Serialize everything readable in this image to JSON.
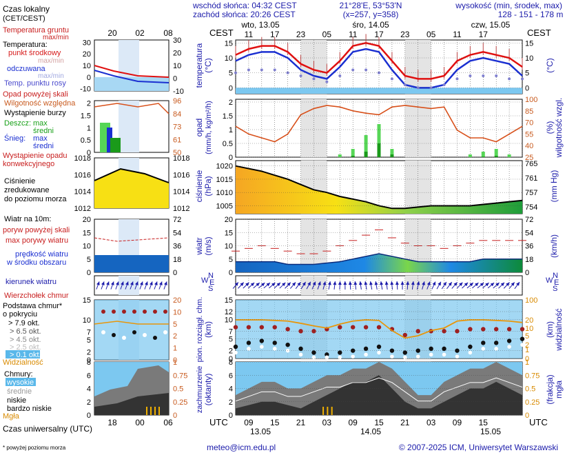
{
  "header": {
    "sunrise": "wschód słońca: 04:32 CEST",
    "sunset": "zachód słońca: 20:26 CEST",
    "coords": "21°28'E, 53°53'N",
    "grid": "(x=257, y=358)",
    "altitude_label": "wysokość (min, środek, max)",
    "altitude_values": "128 - 151 - 178 m"
  },
  "legend": {
    "local_time": "Czas lokalny",
    "local_time_zone": "(CET/CEST)",
    "soil_temp": "Temperatura gruntu",
    "soil_temp_sub": "max/min",
    "temperature": "Temperatura:",
    "temp_mid": "punkt środkowy",
    "temp_maxmin": "max/min",
    "temp_felt": "odczuwana",
    "temp_felt_sub": "max/min",
    "dew_point": "Temp. punktu rosy",
    "precip_over": "Opad powyżej skali",
    "humidity": "Wilgotność względna",
    "storm": "Wystąpienie burzy",
    "rain": "Deszcz:",
    "rain_max": "max",
    "rain_mid": "średni",
    "snow": "Śnieg:",
    "snow_max": "max",
    "snow_mid": "średni",
    "convective": "Wystąpienie opadu",
    "convective2": "konwekcyjnego",
    "pressure1": "Ciśnienie",
    "pressure2": "zredukowane",
    "pressure3": "do poziomu morza",
    "wind_title": "Wiatr na 10m:",
    "gust_over": "poryw powyżej skali",
    "gust_max": "max porywy wiatru",
    "wind_speed": "prędkość wiatru",
    "wind_speed2": "w środku obszaru",
    "wind_dir": "kierunek wiatru",
    "cloud_top": "Wierzchołek chmur",
    "cloud_base": "Podstawa chmur*",
    "cloud_base2": "o pokryciu",
    "okt79": "> 7.9 okt.",
    "okt65": "> 6.5 okt.",
    "okt45": "> 4.5 okt.",
    "okt25": "> 2.5 okt.",
    "okt01": "> 0.1 okt.",
    "visibility": "Widzialność",
    "clouds": "Chmury:",
    "high": "wysokie",
    "mid": "średnie",
    "low": "niskie",
    "very_low": "bardzo niskie",
    "fog": "Mgła",
    "utc": "Czas uniwersalny (UTC)",
    "footnote": "* powyżej poziomu morza",
    "leg_top_hours": [
      "20",
      "02",
      "08"
    ],
    "leg_bot_hours": [
      "18",
      "00",
      "06"
    ]
  },
  "main": {
    "cest": "CEST",
    "utc": "UTC",
    "days": [
      "wto, 13.05",
      "śro, 14.05",
      "czw, 15.05"
    ],
    "bottom_days": [
      "13.05",
      "14.05",
      "15.05"
    ],
    "top_hours": [
      "11",
      "17",
      "23",
      "05",
      "11",
      "17",
      "23",
      "05",
      "11",
      "17"
    ],
    "bottom_hours": [
      "09",
      "15",
      "21",
      "03",
      "09",
      "15",
      "21",
      "03",
      "09",
      "15"
    ],
    "labels": {
      "temp_left": "temperatura",
      "temp_left_unit": "(°C)",
      "temp_right_unit": "(°C)",
      "precip_left": "opad",
      "precip_left_unit": "(mm/h, kg/m²/h)",
      "precip_right": "wilgotność wzgl.",
      "precip_right_unit": "(%)",
      "press_left": "ciśnienie",
      "press_left_unit": "(hPa)",
      "press_right_unit": "(mm Hg)",
      "wind_left": "wiatr",
      "wind_left_unit": "(m/s)",
      "wind_right_unit": "(km/h)",
      "cloud_left": "pion. rozciągł. chm.",
      "cloud_left_unit": "(km)",
      "cloud_right": "widzialność",
      "cloud_right_unit": "(km)",
      "cov_left": "zachmurzenie",
      "cov_left_unit": "(oktanty)",
      "cov_right": "mgła",
      "cov_right_unit": "(frakcja)"
    }
  },
  "footer": {
    "email": "meteo@icm.edu.pl",
    "copyright": "© 2007-2025 ICM, Uniwersytet Warszawski"
  },
  "chart_data": [
    {
      "type": "line",
      "panel": "temperature",
      "x_hours_utc": [
        6,
        9,
        12,
        15,
        18,
        21,
        24,
        27,
        30,
        33,
        36,
        39,
        42,
        45,
        48,
        51,
        54,
        57,
        60,
        63,
        66,
        69,
        72
      ],
      "series": [
        {
          "values": [
            11,
            13,
            14,
            14,
            12,
            8,
            6,
            5,
            9,
            14,
            15,
            14,
            9,
            4,
            3,
            3,
            4,
            9,
            11,
            12,
            11,
            10,
            7
          ]
        },
        {
          "values": [
            9,
            11,
            12,
            12,
            10,
            6,
            4,
            3,
            7,
            12,
            13,
            12,
            6,
            1,
            0,
            0,
            1,
            6,
            9,
            10,
            9,
            8,
            4
          ]
        },
        {
          "values": [
            5,
            6,
            6,
            6,
            5,
            4,
            3,
            2,
            4,
            6,
            6,
            5,
            3,
            1,
            0,
            0,
            1,
            3,
            4,
            4,
            4,
            3,
            3
          ]
        }
      ],
      "left_axis": {
        "ticks": [
          0,
          5,
          10,
          15
        ]
      },
      "right_axis": {
        "ticks": [
          0,
          5,
          10,
          15
        ]
      }
    },
    {
      "type": "bar",
      "panel": "precipitation_humidity",
      "x_hours_utc": [
        6,
        9,
        12,
        15,
        18,
        21,
        24,
        27,
        30,
        33,
        36,
        39,
        42,
        45,
        48,
        51,
        54,
        57,
        60,
        63,
        66,
        69,
        72
      ],
      "humidity": [
        65,
        55,
        50,
        45,
        55,
        80,
        88,
        92,
        90,
        85,
        82,
        80,
        90,
        92,
        90,
        88,
        90,
        60,
        50,
        50,
        45,
        55,
        65
      ],
      "rain_mid": [
        0,
        0,
        0,
        0,
        0,
        0,
        0,
        0,
        0,
        0.05,
        0.2,
        0.5,
        0.1,
        0,
        0,
        0,
        0,
        0,
        0,
        0.02,
        0.05,
        0,
        0
      ],
      "rain_max": [
        0,
        0,
        0,
        0,
        0,
        0,
        0,
        0,
        0.1,
        0.3,
        0.8,
        1.2,
        0.3,
        0,
        0,
        0,
        0,
        0,
        0.1,
        0.2,
        0.3,
        0.1,
        0
      ],
      "left_axis": {
        "ticks": [
          0,
          0.5,
          1,
          1.5,
          2
        ]
      },
      "right_axis": {
        "ticks": [
          25,
          40,
          55,
          70,
          85,
          100
        ]
      }
    },
    {
      "type": "area",
      "panel": "pressure",
      "x_hours_utc": [
        6,
        9,
        12,
        15,
        18,
        21,
        24,
        27,
        30,
        33,
        36,
        39,
        42,
        45,
        48,
        51,
        54,
        57,
        60,
        63,
        66,
        69,
        72
      ],
      "values": [
        1020,
        1019,
        1018,
        1016.5,
        1015,
        1013,
        1011,
        1010,
        1008.5,
        1007.5,
        1006.5,
        1005,
        1004,
        1004,
        1004.5,
        1005,
        1005,
        1005,
        1005,
        1005.5,
        1006,
        1006.5,
        1007
      ],
      "left_axis": {
        "ticks": [
          1005,
          1010,
          1015,
          1020
        ]
      },
      "right_axis": {
        "ticks": [
          754,
          757,
          761,
          765
        ]
      }
    },
    {
      "type": "area",
      "panel": "wind",
      "x_hours_utc": [
        6,
        9,
        12,
        15,
        18,
        21,
        24,
        27,
        30,
        33,
        36,
        39,
        42,
        45,
        48,
        51,
        54,
        57,
        60,
        63,
        66,
        69,
        72
      ],
      "wind_speed": [
        4,
        4,
        4,
        4,
        3,
        3,
        3,
        3.5,
        4,
        5,
        6,
        7,
        6,
        5,
        4,
        4,
        4,
        4,
        4,
        5,
        5,
        5,
        5
      ],
      "gust_max": [
        8,
        9,
        10,
        9,
        8,
        7,
        7,
        8,
        10,
        12,
        14,
        16,
        13,
        11,
        10,
        10,
        9,
        10,
        11,
        12,
        12,
        12,
        12
      ],
      "left_axis": {
        "ticks": [
          0,
          5,
          10,
          15,
          20
        ]
      },
      "right_axis": {
        "ticks": [
          0,
          18,
          36,
          54,
          72
        ]
      }
    },
    {
      "type": "scatter",
      "panel": "clouds_visibility",
      "x_hours_utc": [
        6,
        9,
        12,
        15,
        18,
        21,
        24,
        27,
        30,
        33,
        36,
        39,
        42,
        45,
        48,
        51,
        54,
        57,
        60,
        63,
        66,
        69,
        72
      ],
      "cloud_top": [
        8,
        8,
        8,
        8,
        7.5,
        7,
        7,
        7.5,
        8,
        8,
        8,
        8,
        7.5,
        6,
        7,
        7,
        7,
        7,
        7.5,
        7.5,
        7.5,
        7.5,
        7.5
      ],
      "cloud_base": [
        3,
        4,
        4.5,
        4,
        3.5,
        2.5,
        1.5,
        1,
        1.5,
        2,
        2.5,
        3,
        2,
        1.5,
        2,
        2.5,
        2.5,
        2,
        3,
        4,
        4,
        4.5,
        5
      ],
      "visibility": [
        20,
        20,
        20,
        19,
        18,
        15,
        12,
        10,
        14,
        18,
        20,
        19,
        8,
        4,
        5,
        8,
        10,
        18,
        20,
        20,
        19,
        18,
        16
      ],
      "left_axis": {
        "ticks": [
          0,
          2,
          5,
          7,
          10,
          12,
          15
        ]
      },
      "right_axis": {
        "ticks": [
          0,
          1,
          2,
          5,
          10,
          20,
          100
        ]
      }
    },
    {
      "type": "area",
      "panel": "cloud_cover",
      "x_hours_utc": [
        6,
        9,
        12,
        15,
        18,
        21,
        24,
        27,
        30,
        33,
        36,
        39,
        42,
        45,
        48,
        51,
        54,
        57,
        60,
        63,
        66,
        69,
        72
      ],
      "total_cover": [
        3,
        4,
        5,
        5,
        4,
        4,
        5,
        6,
        6,
        7,
        7,
        8,
        7,
        5,
        3,
        3,
        5,
        6,
        7,
        7,
        8,
        7,
        6
      ],
      "low_cover": [
        1,
        1.5,
        2,
        2,
        1.5,
        1,
        2,
        3,
        4,
        5,
        5,
        6,
        4,
        2,
        1,
        1,
        2,
        3,
        4,
        4,
        5,
        4,
        3
      ],
      "left_axis": {
        "ticks": [
          0,
          2,
          4,
          6,
          8
        ]
      },
      "right_axis": {
        "ticks": [
          0,
          0.25,
          0.5,
          0.75,
          1
        ]
      }
    }
  ]
}
